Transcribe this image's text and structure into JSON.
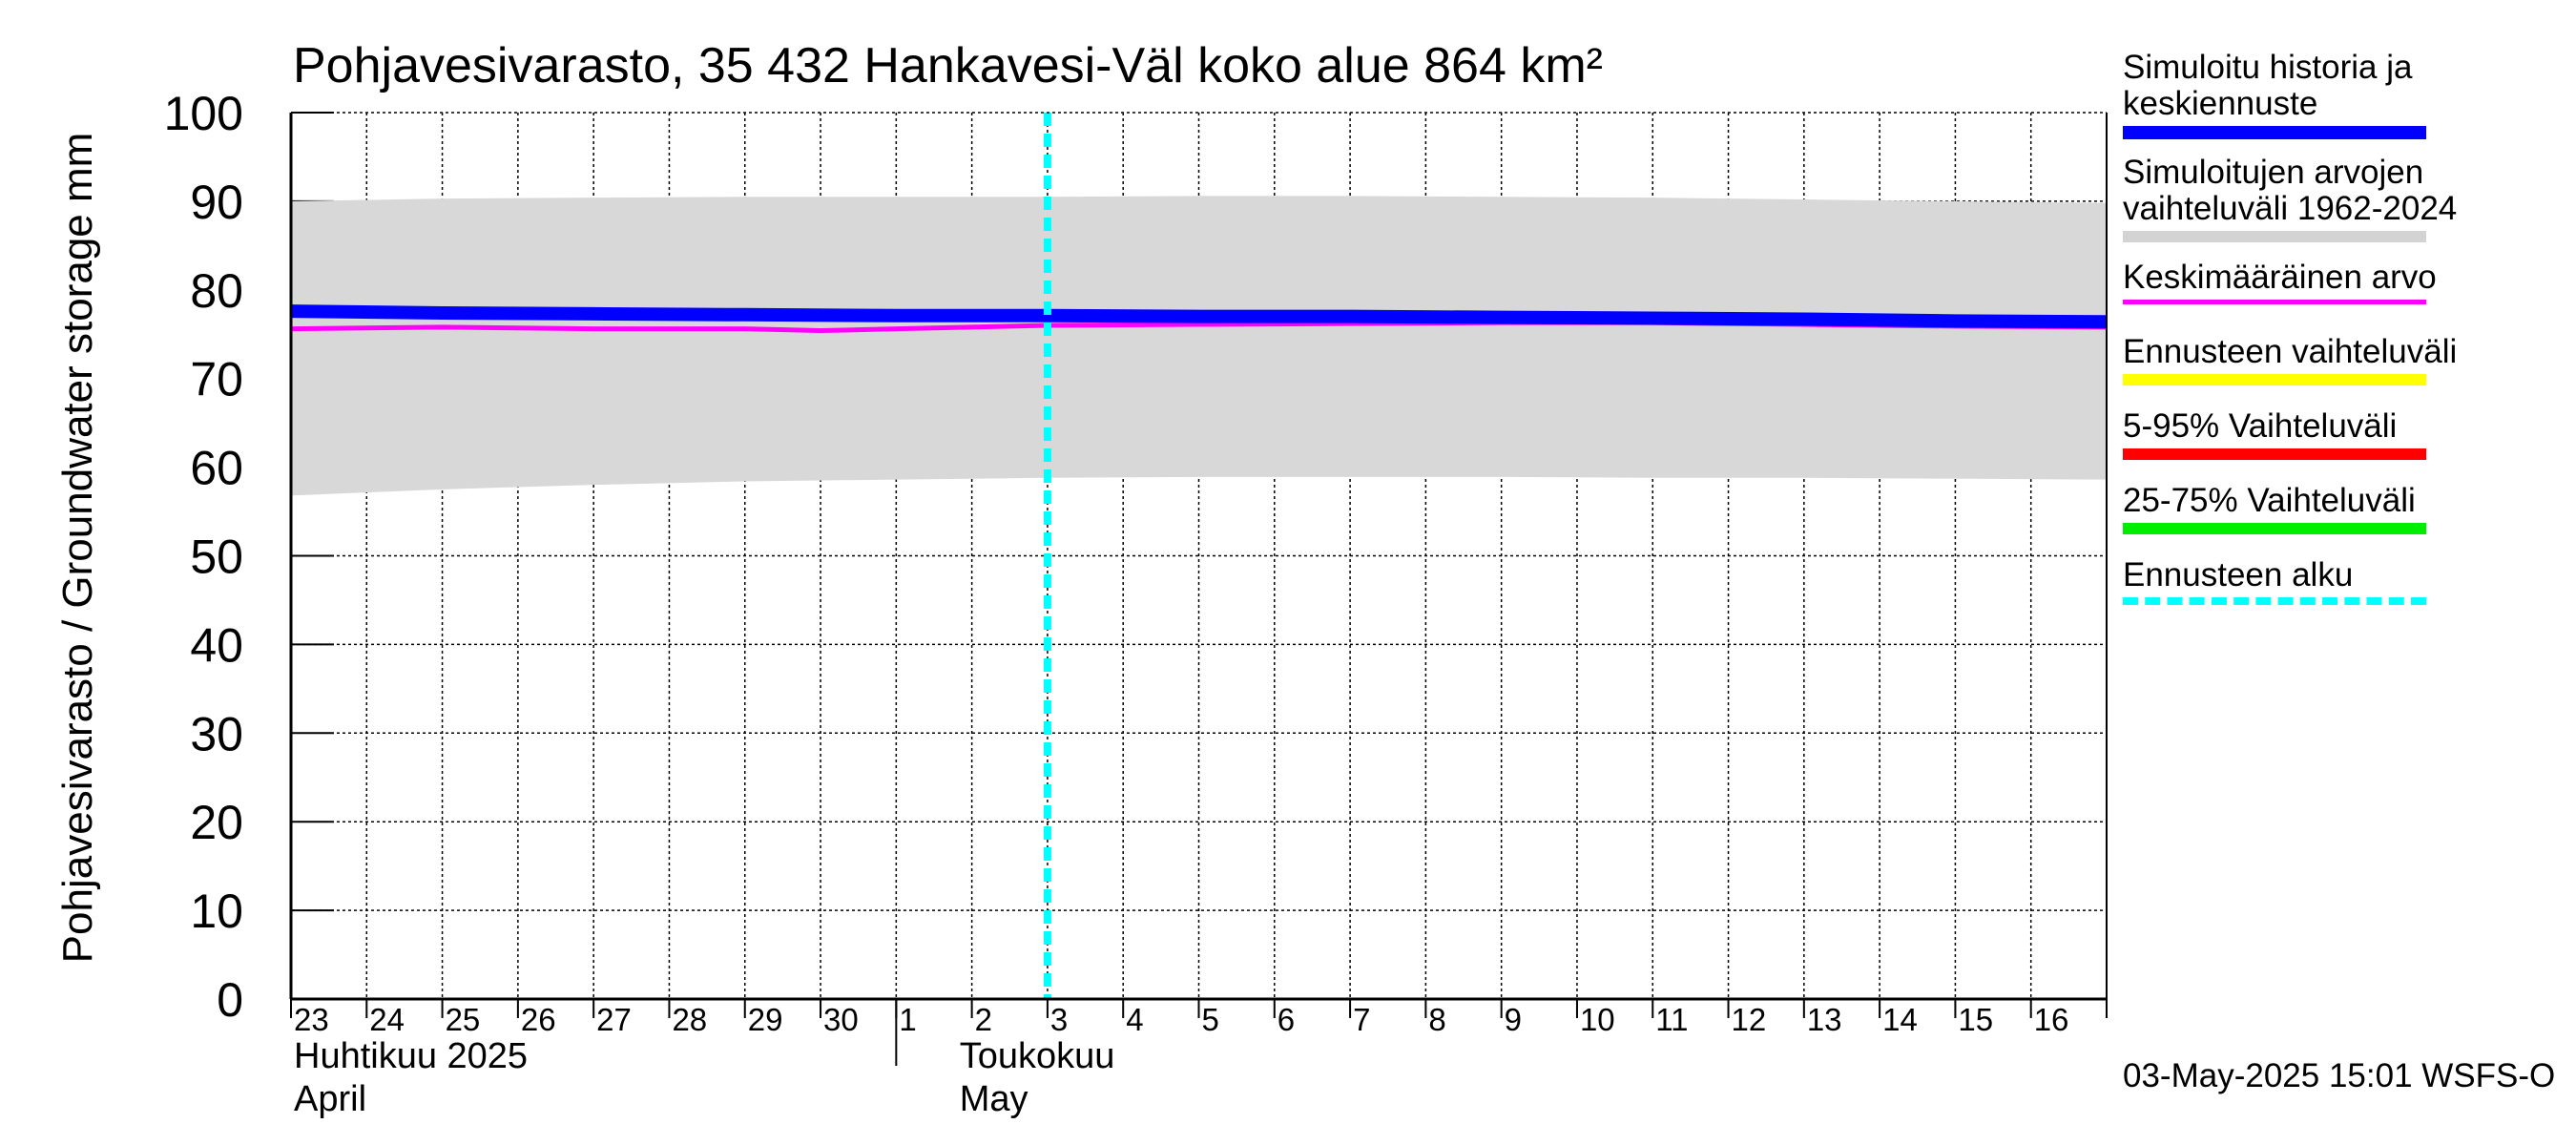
{
  "chart_data": {
    "type": "area",
    "title": "Pohjavesivarasto, 35 432 Hankavesi-Väl koko alue 864 km²",
    "ylabel": "Pohjavesivarasto / Groundwater storage   mm",
    "xlabel": "",
    "ylim": [
      0,
      100
    ],
    "y_ticks": [
      "0",
      "10",
      "20",
      "30",
      "40",
      "50",
      "60",
      "70",
      "80",
      "90",
      "100"
    ],
    "x_tick_labels": [
      "23",
      "24",
      "25",
      "26",
      "27",
      "28",
      "29",
      "30",
      "1",
      "2",
      "3",
      "4",
      "5",
      "6",
      "7",
      "8",
      "9",
      "10",
      "11",
      "12",
      "13",
      "14",
      "15",
      "16"
    ],
    "month_labels": [
      {
        "fi": "Huhtikuu  2025",
        "en": "April",
        "day_index": 0
      },
      {
        "fi": "Toukokuu",
        "en": "May",
        "day_index": 8.8
      }
    ],
    "x_day_range": [
      0,
      24
    ],
    "forecast_start_day": 10,
    "grid": true,
    "series": [
      {
        "name": "Simuloitujen arvojen vaihteluväli 1962-2024",
        "kind": "band",
        "color": "#d8d8d8",
        "x": [
          0,
          2,
          4,
          6,
          8,
          10,
          12,
          14,
          16,
          18,
          20,
          22,
          24
        ],
        "upper": [
          90,
          90.3,
          90.4,
          90.5,
          90.5,
          90.5,
          90.6,
          90.6,
          90.5,
          90.4,
          90.2,
          90.0,
          89.8
        ],
        "lower": [
          56.8,
          57.5,
          58.0,
          58.4,
          58.6,
          58.8,
          58.9,
          58.9,
          58.9,
          58.8,
          58.8,
          58.7,
          58.6
        ]
      },
      {
        "name": "Keskimääräinen arvo",
        "kind": "line",
        "color": "#ff00ff",
        "x": [
          0,
          2,
          4,
          6,
          7,
          8,
          10,
          12,
          14,
          16,
          18,
          20,
          22,
          24
        ],
        "values": [
          75.6,
          75.8,
          75.6,
          75.6,
          75.4,
          75.6,
          76.0,
          76.1,
          76.2,
          76.3,
          76.3,
          76.1,
          75.9,
          75.8
        ]
      },
      {
        "name": "Simuloitu historia ja keskiennuste",
        "kind": "line",
        "color": "#0000ff",
        "x": [
          0,
          2,
          4,
          6,
          8,
          10,
          12,
          14,
          16,
          18,
          20,
          22,
          24
        ],
        "values": [
          77.6,
          77.4,
          77.3,
          77.2,
          77.1,
          77.1,
          77.0,
          77.0,
          76.9,
          76.8,
          76.7,
          76.5,
          76.4
        ]
      }
    ]
  },
  "legend": [
    {
      "label": "Simuloitu historia ja\nkeskiennuste",
      "color": "#0000ff",
      "style": "solid",
      "thickness": 14
    },
    {
      "label": "Simuloitujen arvojen\nvaihteluväli 1962-2024",
      "color": "#d3d3d3",
      "style": "solid",
      "thickness": 12
    },
    {
      "label": "Keskimääräinen arvo",
      "color": "#ff00ff",
      "style": "solid",
      "thickness": 5
    },
    {
      "label": "Ennusteen vaihteluväli",
      "color": "#ffff00",
      "style": "solid",
      "thickness": 12
    },
    {
      "label": "5-95% Vaihteluväli",
      "color": "#ff0000",
      "style": "solid",
      "thickness": 12
    },
    {
      "label": "25-75% Vaihteluväli",
      "color": "#00ee00",
      "style": "solid",
      "thickness": 12
    },
    {
      "label": "Ennusteen alku",
      "color": "#00ffff",
      "style": "dashed",
      "thickness": 8
    }
  ],
  "footer": "03-May-2025 15:01 WSFS-O"
}
